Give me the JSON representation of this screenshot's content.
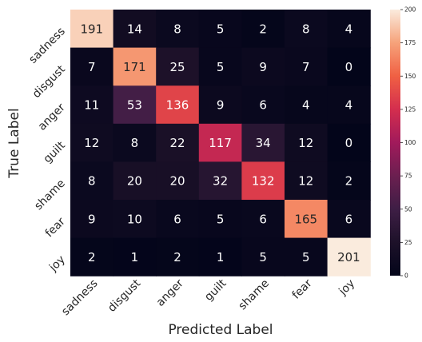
{
  "chart_data": {
    "type": "heatmap",
    "title": "",
    "xlabel": "Predicted Label",
    "ylabel": "True Label",
    "x_categories": [
      "sadness",
      "disgust",
      "anger",
      "guilt",
      "shame",
      "fear",
      "joy"
    ],
    "y_categories": [
      "sadness",
      "disgust",
      "anger",
      "guilt",
      "shame",
      "fear",
      "joy"
    ],
    "values": [
      [
        191,
        14,
        8,
        5,
        2,
        8,
        4
      ],
      [
        7,
        171,
        25,
        5,
        9,
        7,
        0
      ],
      [
        11,
        53,
        136,
        9,
        6,
        4,
        4
      ],
      [
        12,
        8,
        22,
        117,
        34,
        12,
        0
      ],
      [
        8,
        20,
        20,
        32,
        132,
        12,
        2
      ],
      [
        9,
        10,
        6,
        5,
        6,
        165,
        6
      ],
      [
        2,
        1,
        2,
        1,
        5,
        5,
        201
      ]
    ],
    "colorbar": {
      "min": 0,
      "max": 200,
      "ticks": [
        0,
        25,
        50,
        75,
        100,
        125,
        150,
        175,
        200
      ]
    },
    "colormap": "rocket",
    "annotation_color_dark": "#262626",
    "annotation_color_light": "#ffffff"
  }
}
